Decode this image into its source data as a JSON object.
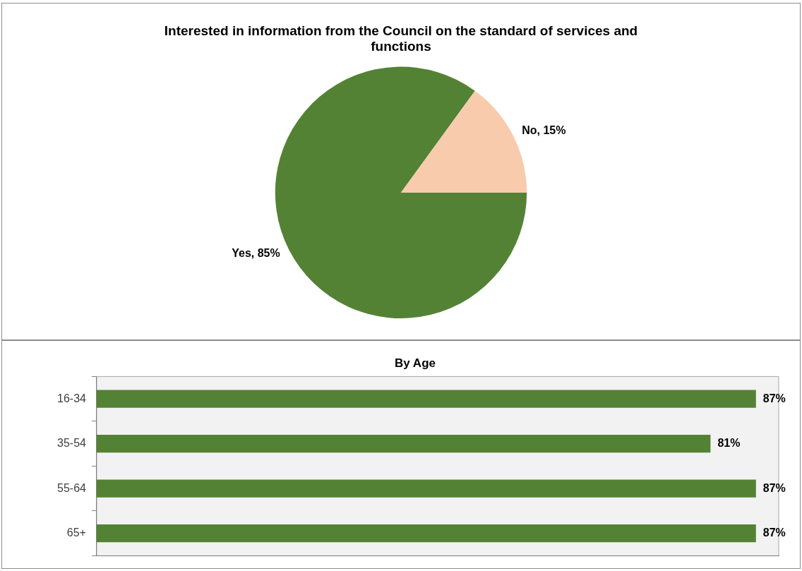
{
  "chart_data": [
    {
      "type": "pie",
      "title": "Interested in information from the Council on the standard of services and functions",
      "categories": [
        "Yes",
        "No"
      ],
      "values": [
        85,
        15
      ],
      "colors": [
        "#548235",
        "#f8cbad"
      ],
      "value_labels": [
        "85%",
        "15%"
      ],
      "legend": false
    },
    {
      "type": "bar",
      "orientation": "horizontal",
      "title": "By Age",
      "categories": [
        "16-34",
        "35-54",
        "55-64",
        "65+"
      ],
      "values": [
        87,
        81,
        87,
        87
      ],
      "color": "#548235",
      "tick_labels": "y",
      "value_labels": [
        "87%",
        "81%",
        "87%",
        "87%"
      ],
      "grid": false,
      "legend": false
    }
  ]
}
